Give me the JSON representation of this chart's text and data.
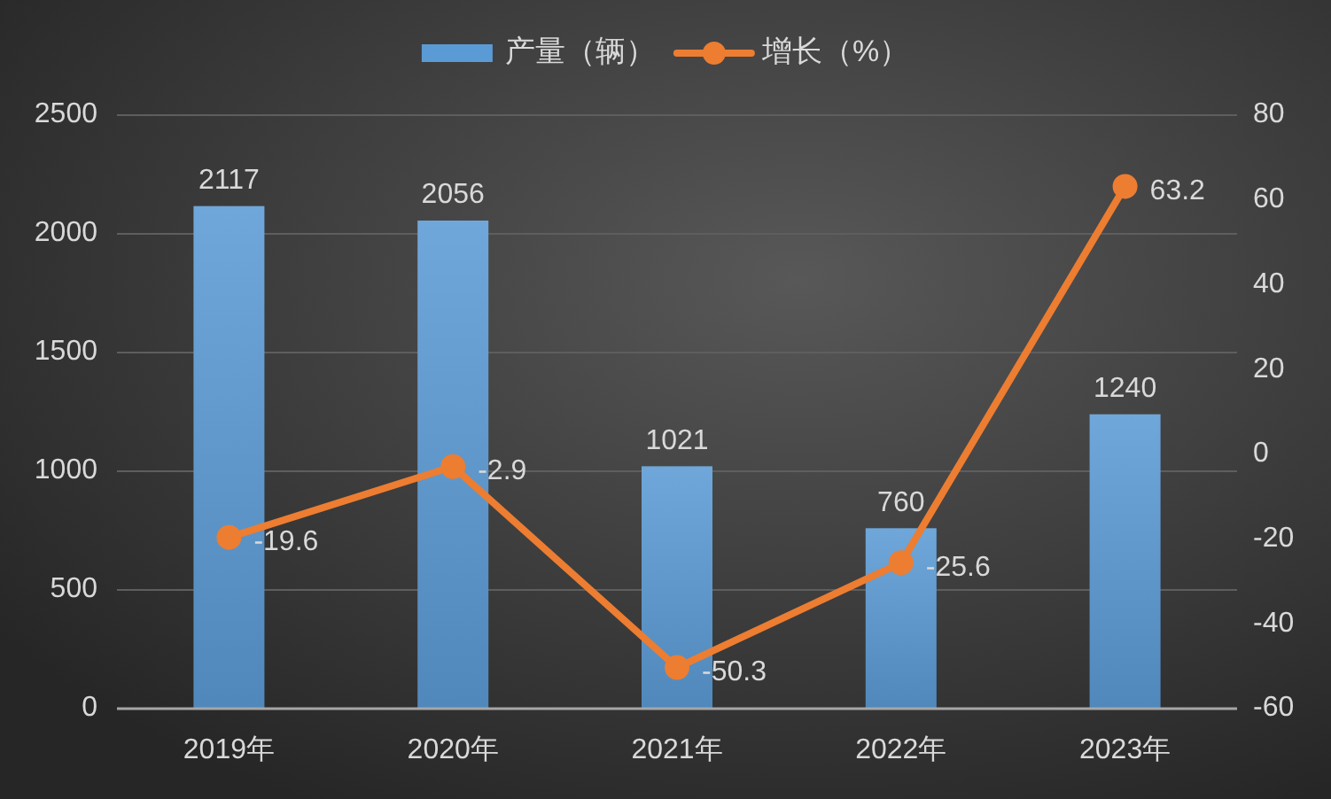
{
  "chart_data": {
    "type": "bar",
    "categories": [
      "2019年",
      "2020年",
      "2021年",
      "2022年",
      "2023年"
    ],
    "series": [
      {
        "name": "产量（辆）",
        "color": "#5b9bd5",
        "values": [
          2117,
          2056,
          1021,
          760,
          1240
        ]
      },
      {
        "name": "增长（%）",
        "type": "line",
        "axis": "y2",
        "color": "#ed7d31",
        "values": [
          -19.6,
          -2.9,
          -50.3,
          -25.6,
          63.2
        ]
      }
    ],
    "ylim": [
      0,
      2500
    ],
    "yticks": [
      0,
      500,
      1000,
      1500,
      2000,
      2500
    ],
    "y2lim": [
      -60,
      80
    ],
    "y2ticks": [
      -60,
      -40,
      -20,
      0,
      20,
      40,
      60,
      80
    ],
    "grid": "y",
    "legend": "top",
    "marker": "circle",
    "line_style": "solid",
    "data_labels": true
  }
}
